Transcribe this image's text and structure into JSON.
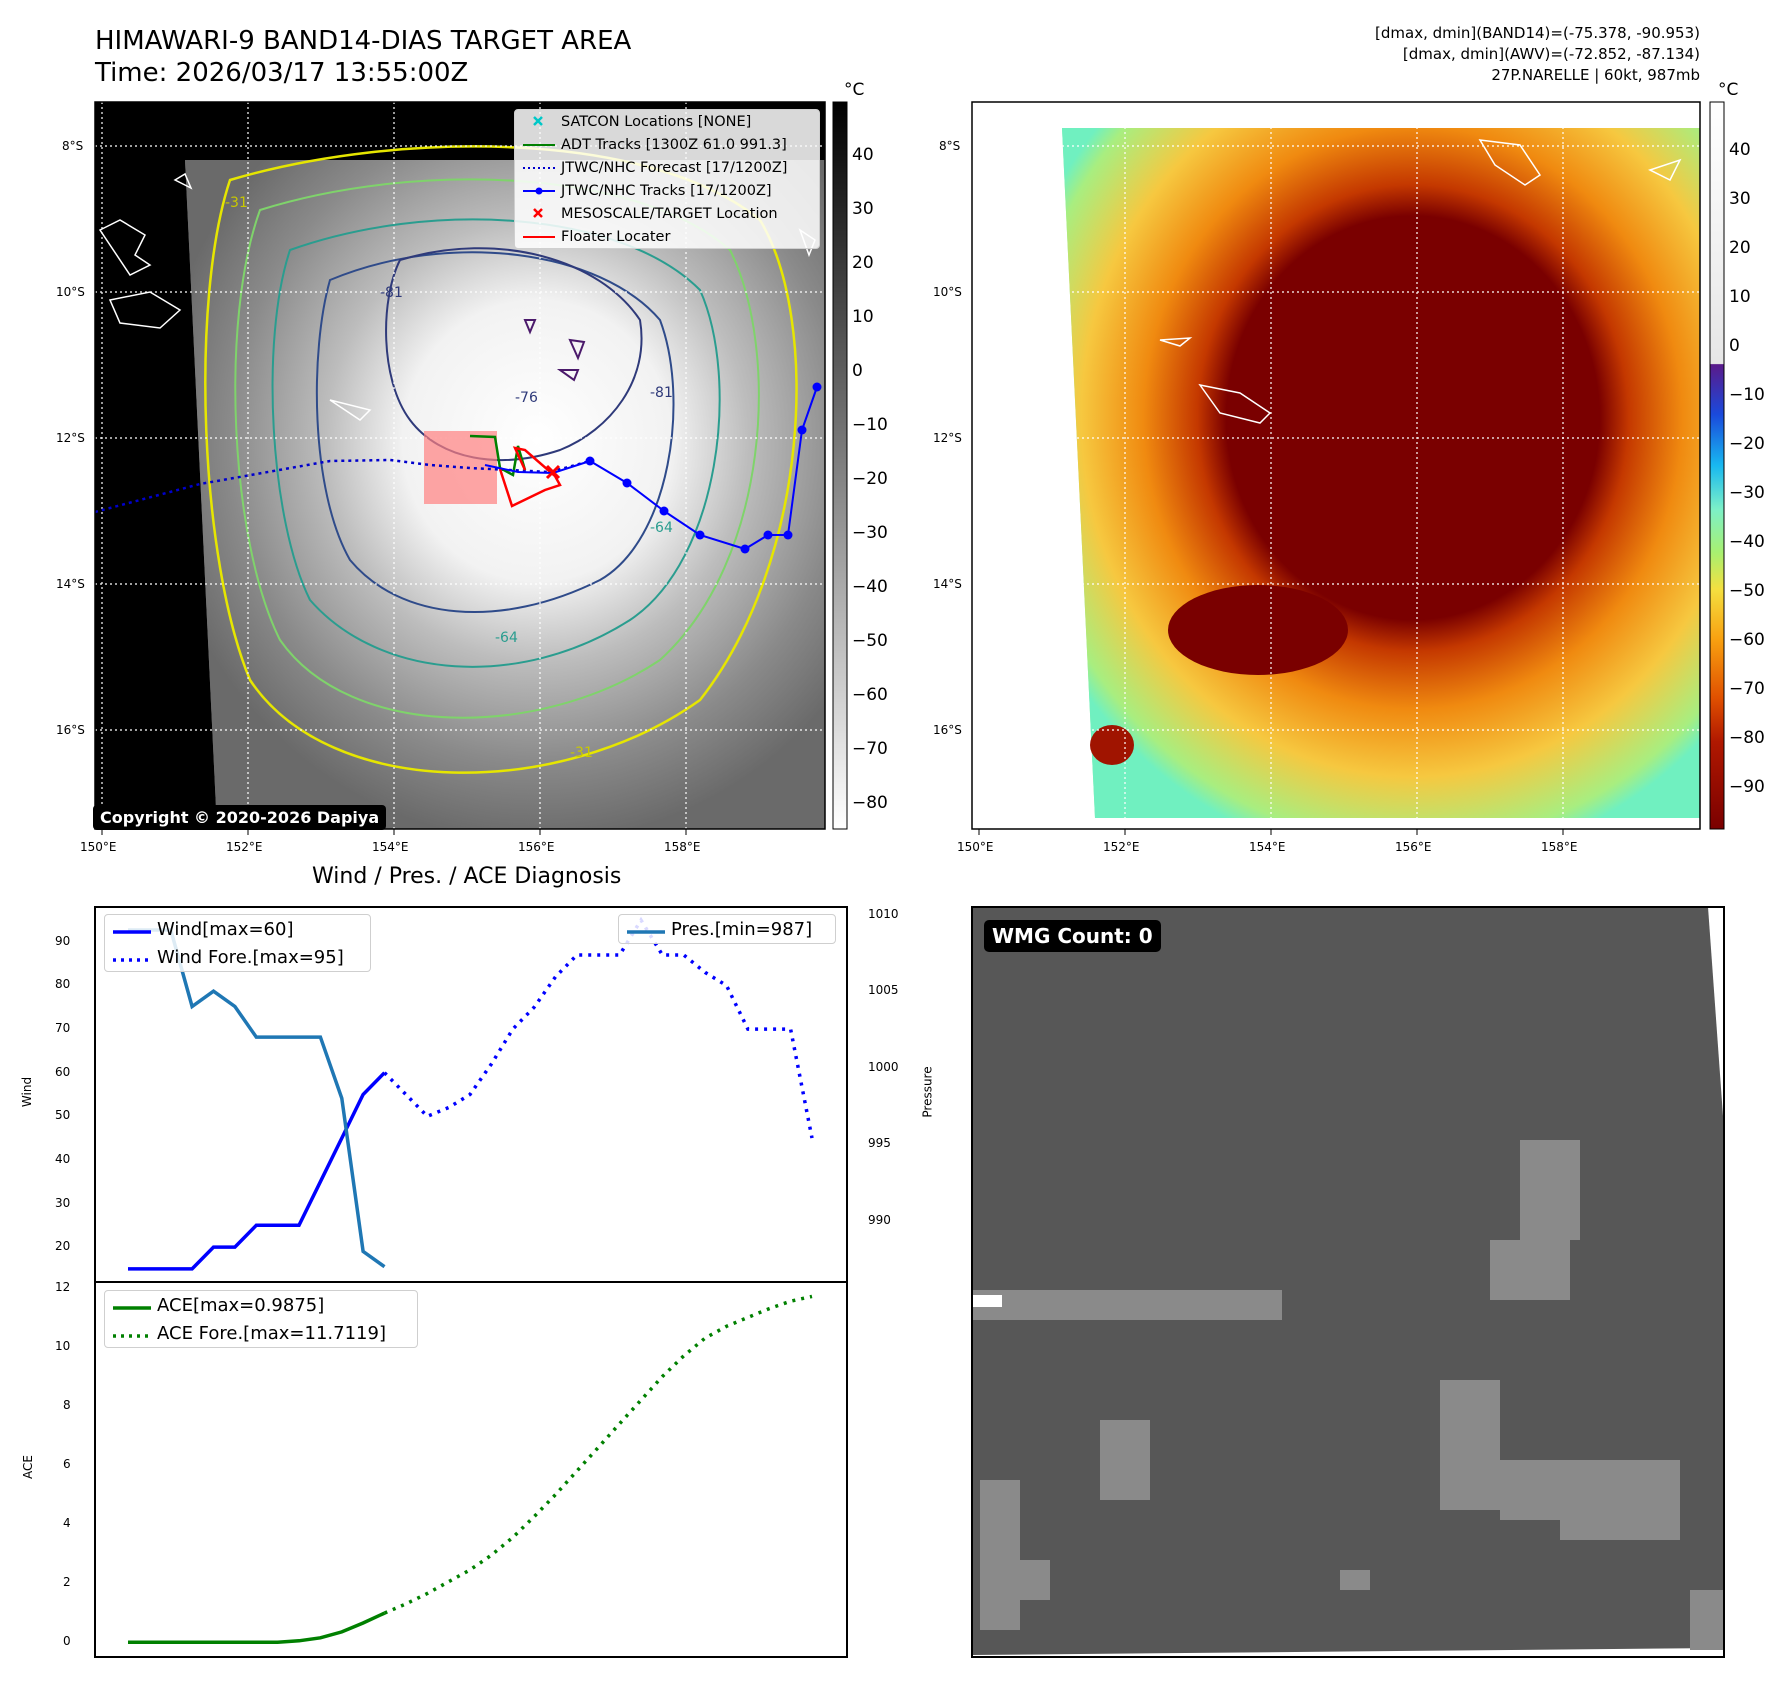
{
  "panel_ir": {
    "title_line1": "HIMAWARI-9 BAND14-DIAS TARGET AREA",
    "title_line2": "Time: 2026/03/17 13:55:00Z",
    "copyright": "Copyright © 2020-2026 Dapiya",
    "lat_labels": [
      "8°S",
      "10°S",
      "12°S",
      "14°S",
      "16°S"
    ],
    "lon_labels": [
      "150°E",
      "152°E",
      "154°E",
      "156°E",
      "158°E"
    ],
    "contour_labels": [
      "-31",
      "-64",
      "-76",
      "-81",
      "-64",
      "-81",
      "-31"
    ],
    "colorbar_unit": "°C",
    "colorbar_ticks": [
      "40",
      "30",
      "20",
      "10",
      "0",
      "−10",
      "−20",
      "−30",
      "−40",
      "−50",
      "−60",
      "−70",
      "−80"
    ],
    "legend": [
      {
        "label": "SATCON Locations [NONE]",
        "color": "#00c8c8",
        "symbol": "x"
      },
      {
        "label": "ADT Tracks [1300Z 61.0 991.3]",
        "color": "#008000",
        "symbol": "line"
      },
      {
        "label": "JTWC/NHC Forecast [17/1200Z]",
        "color": "#0000cc",
        "symbol": "dotted"
      },
      {
        "label": "JTWC/NHC Tracks [17/1200Z]",
        "color": "#0000ff",
        "symbol": "line-dot"
      },
      {
        "label": "MESOSCALE/TARGET Location",
        "color": "#ff0000",
        "symbol": "x"
      },
      {
        "label": "Floater Locater",
        "color": "#ff0000",
        "symbol": "line"
      }
    ]
  },
  "panel_awv": {
    "info_line1": "[dmax, dmin](BAND14)=(-75.378, -90.953)",
    "info_line2": "[dmax, dmin](AWV)=(-72.852, -87.134)",
    "info_line3": "27P.NARELLE | 60kt, 987mb",
    "lat_labels": [
      "8°S",
      "10°S",
      "12°S",
      "14°S",
      "16°S"
    ],
    "lon_labels": [
      "150°E",
      "152°E",
      "154°E",
      "156°E",
      "158°E"
    ],
    "colorbar_unit": "°C",
    "colorbar_ticks": [
      "40",
      "30",
      "20",
      "10",
      "0",
      "−10",
      "−20",
      "−30",
      "−40",
      "−50",
      "−60",
      "−70",
      "−80",
      "−90"
    ]
  },
  "panel_wmg": {
    "label": "WMG Count: 0"
  },
  "diagnosis": {
    "title": "Wind / Pres. / ACE Diagnosis",
    "wind_ylabel": "Wind",
    "pres_ylabel": "Pressure",
    "ace_ylabel": "ACE",
    "wind_ticks": [
      "90",
      "80",
      "70",
      "60",
      "50",
      "40",
      "30",
      "20"
    ],
    "pres_ticks": [
      "1010",
      "1005",
      "1000",
      "995",
      "990"
    ],
    "ace_ticks": [
      "12",
      "10",
      "8",
      "6",
      "4",
      "2",
      "0"
    ],
    "legend_wind": "Wind[max=60]",
    "legend_wind_fore": "Wind Fore.[max=95]",
    "legend_pres": "Pres.[min=987]",
    "legend_ace": "ACE[max=0.9875]",
    "legend_ace_fore": "ACE Fore.[max=11.7119]"
  },
  "chart_data": [
    {
      "type": "line",
      "title": "Wind / Pres. / ACE Diagnosis",
      "ylabel": "Wind",
      "ylim": [
        12,
        98
      ],
      "series": [
        {
          "name": "Wind[max=60]",
          "x": [
            0,
            1,
            2,
            3,
            4,
            5,
            6,
            7,
            8,
            9,
            10,
            11,
            12
          ],
          "values": [
            15,
            15,
            15,
            15,
            20,
            20,
            25,
            25,
            25,
            35,
            45,
            55,
            60
          ]
        },
        {
          "name": "Wind Fore.[max=95]",
          "x": [
            12,
            13,
            14,
            15,
            16,
            17,
            18,
            19,
            20,
            21,
            22,
            23,
            24,
            25,
            26,
            27,
            28,
            29,
            30,
            31,
            32
          ],
          "values": [
            60,
            55,
            50,
            52,
            55,
            62,
            70,
            75,
            82,
            87,
            87,
            87,
            95,
            87,
            87,
            83,
            80,
            70,
            70,
            70,
            45
          ]
        }
      ],
      "secondary_ylabel": "Pressure",
      "secondary_ylim": [
        986,
        1010.5
      ],
      "secondary_series": [
        {
          "name": "Pres.[min=987]",
          "x": [
            0,
            1,
            2,
            3,
            4,
            5,
            6,
            7,
            8,
            9,
            10,
            11,
            12
          ],
          "values": [
            1009,
            1009,
            1009,
            1004,
            1005,
            1004,
            1002,
            1002,
            1002,
            1002,
            998,
            988,
            987
          ]
        }
      ]
    },
    {
      "type": "line",
      "ylabel": "ACE",
      "ylim": [
        -0.5,
        12.2
      ],
      "series": [
        {
          "name": "ACE[max=0.9875]",
          "x": [
            0,
            1,
            2,
            3,
            4,
            5,
            6,
            7,
            8,
            9,
            10,
            11,
            12
          ],
          "values": [
            0,
            0,
            0,
            0,
            0,
            0,
            0,
            0,
            0.05,
            0.15,
            0.35,
            0.65,
            0.9875
          ]
        },
        {
          "name": "ACE Fore.[max=11.7119]",
          "x": [
            12,
            13,
            14,
            15,
            16,
            17,
            18,
            19,
            20,
            21,
            22,
            23,
            24,
            25,
            26,
            27,
            28,
            29,
            30,
            31,
            32
          ],
          "values": [
            0.9875,
            1.3,
            1.65,
            2.05,
            2.45,
            2.95,
            3.55,
            4.25,
            5.0,
            5.8,
            6.6,
            7.4,
            8.2,
            9.0,
            9.7,
            10.3,
            10.7,
            11.0,
            11.3,
            11.55,
            11.7119
          ]
        }
      ]
    }
  ]
}
